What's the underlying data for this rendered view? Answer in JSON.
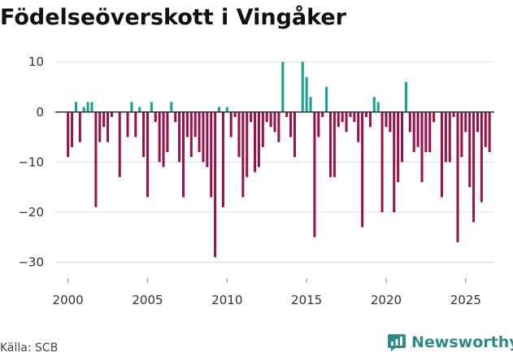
{
  "title": "Födelseöverskott i Vingåker",
  "source": "Källa: SCB",
  "brand": "Newsworthy",
  "colors": {
    "positive": "#1a9e91",
    "negative": "#96124a",
    "grid": "#dddddd",
    "zero": "#333333",
    "brand": "#2e8a87"
  },
  "chart_data": {
    "type": "bar",
    "title": "Födelseöverskott i Vingåker",
    "xlabel": "",
    "ylabel": "",
    "ylim": [
      -33,
      11
    ],
    "xlim": [
      1999.2,
      2026.8
    ],
    "yticks": [
      10,
      0,
      -10,
      -20,
      -30
    ],
    "yticklabels": [
      "10",
      "0",
      "−10",
      "−20",
      "−30"
    ],
    "xticks": [
      2000,
      2005,
      2010,
      2015,
      2020,
      2025
    ],
    "xticklabels": [
      "2000",
      "2005",
      "2010",
      "2015",
      "2020",
      "2025"
    ],
    "frequency": "quarterly",
    "series": [
      {
        "name": "Födelseöverskott",
        "start": 2000.0,
        "step": 0.25,
        "values": [
          -9,
          -7,
          2,
          -6,
          1,
          2,
          2,
          -19,
          -6,
          -3,
          -6,
          -1,
          0,
          -13,
          0,
          -5,
          2,
          -5,
          1,
          -9,
          -17,
          2,
          -2,
          -10,
          -11,
          -8,
          2,
          -2,
          -10,
          -17,
          -5,
          -9,
          -5,
          -8,
          -10,
          -11,
          -17,
          -29,
          1,
          -19,
          1,
          -5,
          -1,
          -9,
          -17,
          -13,
          -2,
          -12,
          -11,
          -7,
          -2,
          -3,
          -4,
          -6,
          10,
          -1,
          -5,
          -9,
          0,
          10,
          7,
          3,
          -25,
          -5,
          -1,
          5,
          -13,
          -13,
          -3,
          -2,
          -4,
          -1,
          -2,
          -6,
          -23,
          -1,
          -3,
          3,
          2,
          -20,
          -3,
          -4,
          -20,
          -14,
          -10,
          6,
          -4,
          -8,
          -7,
          -14,
          -8,
          -8,
          -2,
          0,
          -17,
          -10,
          -10,
          -1,
          -26,
          -9,
          -4,
          -15,
          -22,
          -4,
          -18,
          -7,
          -8
        ]
      }
    ]
  }
}
